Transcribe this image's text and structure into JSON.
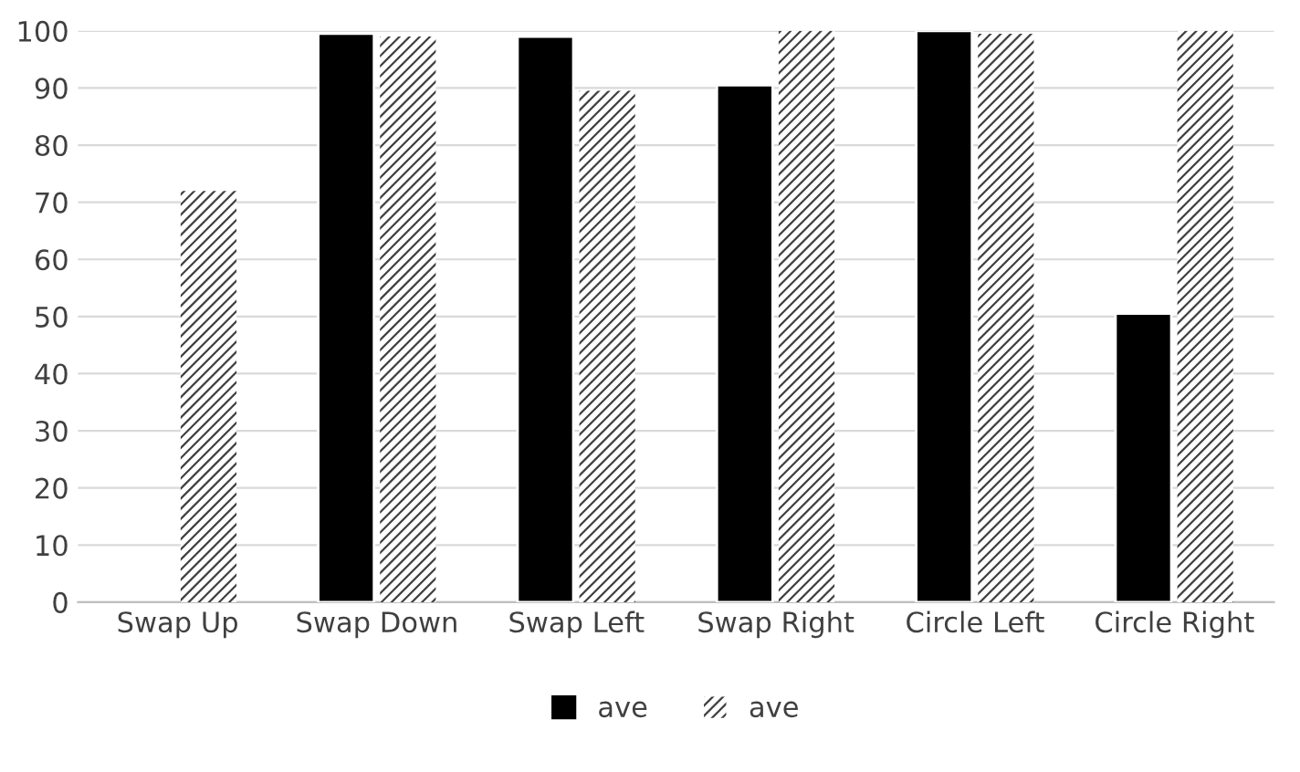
{
  "chart_data": {
    "type": "bar",
    "categories": [
      "Swap Up",
      "Swap Down",
      "Swap Left",
      "Swap Right",
      "Circle Left",
      "Circle Right"
    ],
    "series": [
      {
        "name": "ave",
        "color": "#000000",
        "values": [
          null,
          99.5,
          99,
          90.5,
          100,
          50.5
        ]
      },
      {
        "name": "ave",
        "color": "#404040",
        "values": [
          72,
          99,
          89.5,
          100,
          99.5,
          100
        ]
      }
    ],
    "ylim": [
      0,
      100
    ],
    "yticks": [
      0,
      10,
      20,
      30,
      40,
      50,
      60,
      70,
      80,
      90,
      100
    ],
    "grid": "y",
    "legend": "bottom"
  }
}
